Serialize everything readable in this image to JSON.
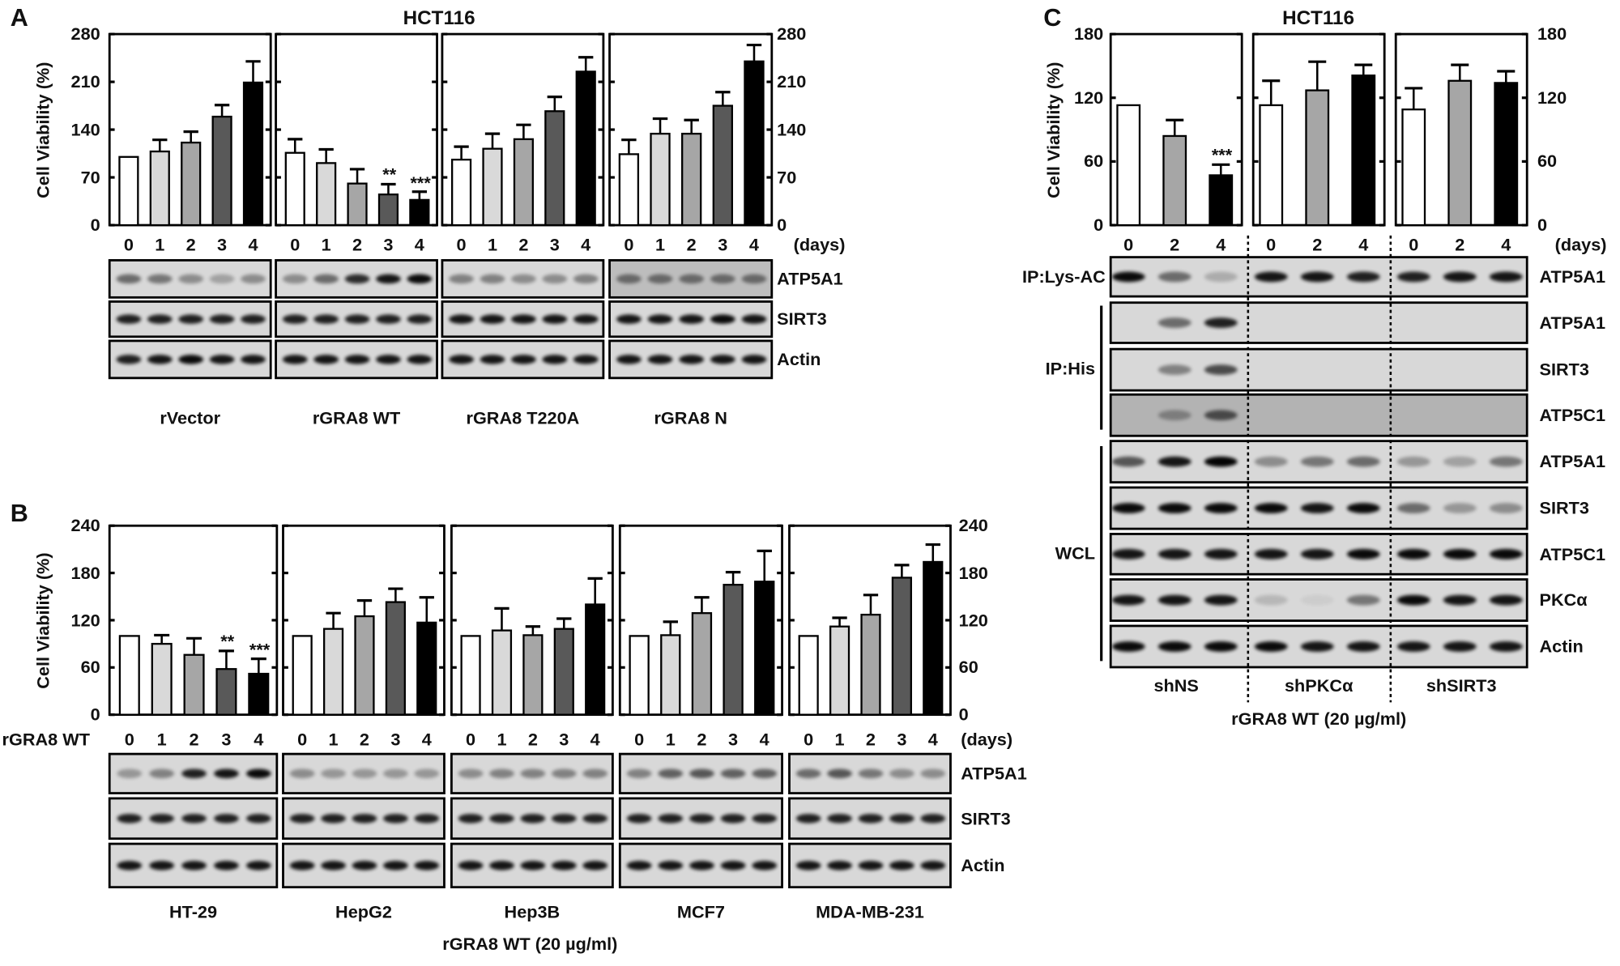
{
  "panel_a": {
    "letter": "A",
    "cell_line": "HCT116",
    "ylabel": "Cell Viability (%)",
    "x_unit": "(days)",
    "blots": [
      {
        "label": "ATP5A1",
        "intensities": [
          [
            0.5,
            0.45,
            0.35,
            0.25,
            0.35
          ],
          [
            0.35,
            0.5,
            0.8,
            0.9,
            0.95
          ],
          [
            0.4,
            0.4,
            0.35,
            0.35,
            0.4
          ],
          [
            0.45,
            0.45,
            0.45,
            0.45,
            0.45
          ]
        ]
      },
      {
        "label": "SIRT3",
        "intensities": [
          [
            0.85,
            0.85,
            0.85,
            0.85,
            0.85
          ],
          [
            0.85,
            0.85,
            0.85,
            0.85,
            0.85
          ],
          [
            0.9,
            0.9,
            0.9,
            0.9,
            0.9
          ],
          [
            0.9,
            0.9,
            0.9,
            0.95,
            0.9
          ]
        ]
      },
      {
        "label": "Actin",
        "intensities": [
          [
            0.85,
            0.9,
            0.95,
            0.9,
            0.9
          ],
          [
            0.9,
            0.9,
            0.9,
            0.9,
            0.9
          ],
          [
            0.9,
            0.9,
            0.9,
            0.9,
            0.9
          ],
          [
            0.9,
            0.9,
            0.9,
            0.9,
            0.9
          ]
        ]
      }
    ]
  },
  "panel_b": {
    "letter": "B",
    "ylabel": "Cell Viability (%)",
    "x_unit": "(days)",
    "row_label": "rGRA8 WT",
    "treatment": "rGRA8 WT (20 µg/ml)",
    "blots": [
      {
        "label": "ATP5A1",
        "intensities": [
          [
            0.3,
            0.4,
            0.85,
            0.9,
            0.95
          ],
          [
            0.35,
            0.3,
            0.3,
            0.3,
            0.3
          ],
          [
            0.35,
            0.4,
            0.4,
            0.4,
            0.4
          ],
          [
            0.4,
            0.55,
            0.6,
            0.55,
            0.55
          ],
          [
            0.5,
            0.6,
            0.45,
            0.35,
            0.35
          ]
        ]
      },
      {
        "label": "SIRT3",
        "intensities": [
          [
            0.85,
            0.85,
            0.85,
            0.85,
            0.85
          ],
          [
            0.85,
            0.85,
            0.85,
            0.85,
            0.85
          ],
          [
            0.85,
            0.85,
            0.85,
            0.85,
            0.85
          ],
          [
            0.85,
            0.85,
            0.85,
            0.85,
            0.85
          ],
          [
            0.85,
            0.85,
            0.85,
            0.85,
            0.85
          ]
        ]
      },
      {
        "label": "Actin",
        "intensities": [
          [
            0.9,
            0.9,
            0.9,
            0.9,
            0.9
          ],
          [
            0.9,
            0.9,
            0.9,
            0.9,
            0.9
          ],
          [
            0.9,
            0.9,
            0.9,
            0.9,
            0.9
          ],
          [
            0.9,
            0.9,
            0.9,
            0.9,
            0.9
          ],
          [
            0.9,
            0.9,
            0.9,
            0.9,
            0.9
          ]
        ]
      }
    ]
  },
  "panel_c": {
    "letter": "C",
    "cell_line": "HCT116",
    "ylabel": "Cell Viability (%)",
    "x_unit": "(days)",
    "treatment": "rGRA8 WT (20 µg/ml)",
    "ip_labels": [
      "IP:Lys-AC",
      "IP:His",
      "WCL"
    ],
    "blots": [
      {
        "label": "ATP5A1",
        "intensities": [
          0.95,
          0.5,
          0.2,
          0.9,
          0.9,
          0.85,
          0.85,
          0.9,
          0.9
        ]
      },
      {
        "label": "ATP5A1",
        "intensities": [
          0,
          0.5,
          0.85,
          0,
          0,
          0,
          0,
          0,
          0
        ]
      },
      {
        "label": "SIRT3",
        "intensities": [
          0,
          0.4,
          0.65,
          0,
          0,
          0,
          0,
          0,
          0
        ]
      },
      {
        "label": "ATP5C1",
        "background": "#b3b3b3",
        "intensities": [
          0,
          0.3,
          0.6,
          0,
          0,
          0,
          0,
          0,
          0
        ]
      },
      {
        "label": "ATP5A1",
        "intensities": [
          0.6,
          0.9,
          0.98,
          0.35,
          0.45,
          0.5,
          0.3,
          0.25,
          0.45
        ]
      },
      {
        "label": "SIRT3",
        "intensities": [
          0.95,
          0.95,
          0.95,
          0.95,
          0.9,
          0.95,
          0.5,
          0.3,
          0.35
        ]
      },
      {
        "label": "ATP5C1",
        "intensities": [
          0.9,
          0.9,
          0.9,
          0.9,
          0.9,
          0.95,
          0.95,
          0.95,
          0.95
        ]
      },
      {
        "label": "PKCα",
        "intensities": [
          0.9,
          0.9,
          0.9,
          0.15,
          0.05,
          0.45,
          0.95,
          0.9,
          0.9
        ]
      },
      {
        "label": "Actin",
        "intensities": [
          0.95,
          0.95,
          0.95,
          0.95,
          0.9,
          0.9,
          0.9,
          0.9,
          0.9
        ]
      }
    ]
  },
  "colors": {
    "day0": "#ffffff",
    "day1": "#d9d9d9",
    "day2": "#a6a6a6",
    "day3": "#595959",
    "day4": "#000000",
    "blot_bg": "#d8d8d8"
  },
  "chart_data": [
    {
      "type": "bar",
      "title": "HCT116",
      "ylabel": "Cell Viability (%)",
      "xlabel": "(days)",
      "categories": [
        "0",
        "1",
        "2",
        "3",
        "4"
      ],
      "ylim": [
        0,
        280
      ],
      "yticks": [
        "0",
        "70",
        "140",
        "210",
        "280"
      ],
      "grid": false,
      "groups": [
        {
          "name": "rVector",
          "values": [
            100,
            108,
            121,
            159,
            209
          ],
          "errors": [
            0,
            17,
            16,
            17,
            31
          ],
          "significance": [
            "",
            "",
            "",
            "",
            ""
          ]
        },
        {
          "name": "rGRA8 WT",
          "values": [
            106,
            91,
            61,
            45,
            37
          ],
          "errors": [
            20,
            20,
            21,
            15,
            12
          ],
          "significance": [
            "",
            "",
            "",
            "**",
            "***"
          ]
        },
        {
          "name": "rGRA8 T220A",
          "values": [
            96,
            112,
            126,
            167,
            225
          ],
          "errors": [
            19,
            22,
            21,
            21,
            21
          ],
          "significance": [
            "",
            "",
            "",
            "",
            ""
          ]
        },
        {
          "name": "rGRA8 N",
          "values": [
            104,
            134,
            134,
            175,
            240
          ],
          "errors": [
            21,
            22,
            20,
            20,
            24
          ],
          "significance": [
            "",
            "",
            "",
            "",
            ""
          ]
        }
      ]
    },
    {
      "type": "bar",
      "ylabel": "Cell Viability (%)",
      "xlabel": "(days)",
      "categories": [
        "0",
        "1",
        "2",
        "3",
        "4"
      ],
      "ylim": [
        0,
        240
      ],
      "yticks": [
        "0",
        "60",
        "120",
        "180",
        "240"
      ],
      "grid": false,
      "groups": [
        {
          "name": "HT-29",
          "values": [
            100,
            90,
            76,
            58,
            52
          ],
          "errors": [
            0,
            11,
            21,
            23,
            19
          ],
          "significance": [
            "",
            "",
            "",
            "**",
            "***"
          ]
        },
        {
          "name": "HepG2",
          "values": [
            100,
            109,
            125,
            143,
            117
          ],
          "errors": [
            0,
            20,
            20,
            17,
            32
          ],
          "significance": [
            "",
            "",
            "",
            "",
            ""
          ]
        },
        {
          "name": "Hep3B",
          "values": [
            100,
            107,
            101,
            109,
            140
          ],
          "errors": [
            0,
            28,
            11,
            13,
            33
          ],
          "significance": [
            "",
            "",
            "",
            "",
            ""
          ]
        },
        {
          "name": "MCF7",
          "values": [
            100,
            101,
            129,
            165,
            169
          ],
          "errors": [
            0,
            17,
            20,
            16,
            39
          ],
          "significance": [
            "",
            "",
            "",
            "",
            ""
          ]
        },
        {
          "name": "MDA-MB-231",
          "values": [
            100,
            112,
            127,
            174,
            194
          ],
          "errors": [
            0,
            11,
            25,
            16,
            22
          ],
          "significance": [
            "",
            "",
            "",
            "",
            ""
          ]
        }
      ]
    },
    {
      "type": "bar",
      "title": "HCT116",
      "ylabel": "Cell Viability (%)",
      "xlabel": "(days)",
      "categories": [
        "0",
        "2",
        "4"
      ],
      "ylim": [
        0,
        180
      ],
      "yticks": [
        "0",
        "60",
        "120",
        "180"
      ],
      "grid": false,
      "groups": [
        {
          "name": "shNS",
          "values": [
            113,
            84,
            47
          ],
          "errors": [
            0,
            15,
            10
          ],
          "significance": [
            "",
            "",
            "***"
          ]
        },
        {
          "name": "shPKCα",
          "values": [
            113,
            127,
            141
          ],
          "errors": [
            23,
            27,
            10
          ],
          "significance": [
            "",
            "",
            ""
          ]
        },
        {
          "name": "shSIRT3",
          "values": [
            109,
            136,
            134
          ],
          "errors": [
            20,
            15,
            11
          ],
          "significance": [
            "",
            "",
            ""
          ]
        }
      ]
    }
  ]
}
